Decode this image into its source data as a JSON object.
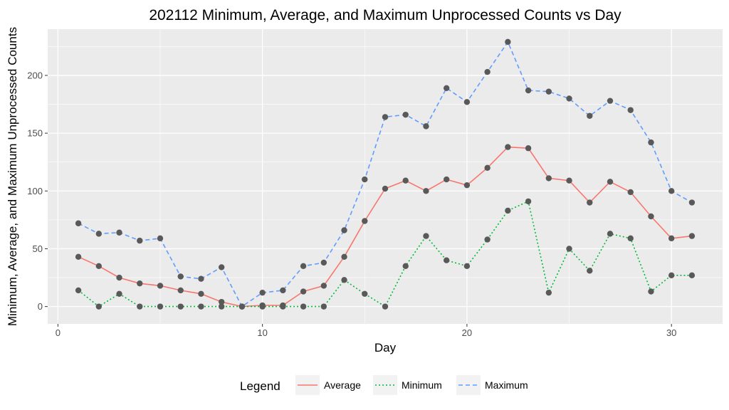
{
  "chart_data": {
    "type": "line",
    "title": "202112 Minimum, Average, and Maximum Unprocessed Counts vs Day",
    "xlabel": "Day",
    "ylabel": "Minimum, Average, and Maximum Unprocessed Counts",
    "xlim": [
      -0.5,
      32.5
    ],
    "ylim": [
      -15,
      240
    ],
    "x_ticks": [
      0,
      10,
      20,
      30
    ],
    "y_ticks": [
      0,
      50,
      100,
      150,
      200
    ],
    "grid": true,
    "legend_title": "Legend",
    "legend_position": "bottom",
    "x": [
      1,
      2,
      3,
      4,
      5,
      6,
      7,
      8,
      9,
      10,
      11,
      12,
      13,
      14,
      15,
      16,
      17,
      18,
      19,
      20,
      21,
      22,
      23,
      24,
      25,
      26,
      27,
      28,
      29,
      30,
      31
    ],
    "series": [
      {
        "name": "Average",
        "color": "#F8766D",
        "dash": "solid",
        "values": [
          43,
          35,
          25,
          20,
          18,
          14,
          11,
          4,
          0,
          1,
          1,
          13,
          18,
          43,
          74,
          102,
          109,
          100,
          110,
          105,
          120,
          138,
          137,
          111,
          109,
          90,
          108,
          99,
          78,
          59,
          61
        ]
      },
      {
        "name": "Minimum",
        "color": "#00BA38",
        "dash": "dotted",
        "values": [
          14,
          0,
          11,
          0,
          0,
          0,
          0,
          0,
          0,
          0,
          0,
          0,
          0,
          23,
          11,
          0,
          35,
          61,
          40,
          35,
          58,
          83,
          91,
          12,
          50,
          31,
          63,
          59,
          13,
          27,
          27
        ]
      },
      {
        "name": "Maximum",
        "color": "#619CFF",
        "dash": "dashed",
        "values": [
          72,
          63,
          64,
          57,
          59,
          26,
          24,
          34,
          0,
          12,
          14,
          35,
          38,
          66,
          110,
          164,
          166,
          156,
          189,
          177,
          203,
          229,
          187,
          186,
          180,
          165,
          178,
          170,
          142,
          100,
          90
        ]
      }
    ],
    "point_color": "#595959",
    "panel_color": "#EBEBEB"
  }
}
